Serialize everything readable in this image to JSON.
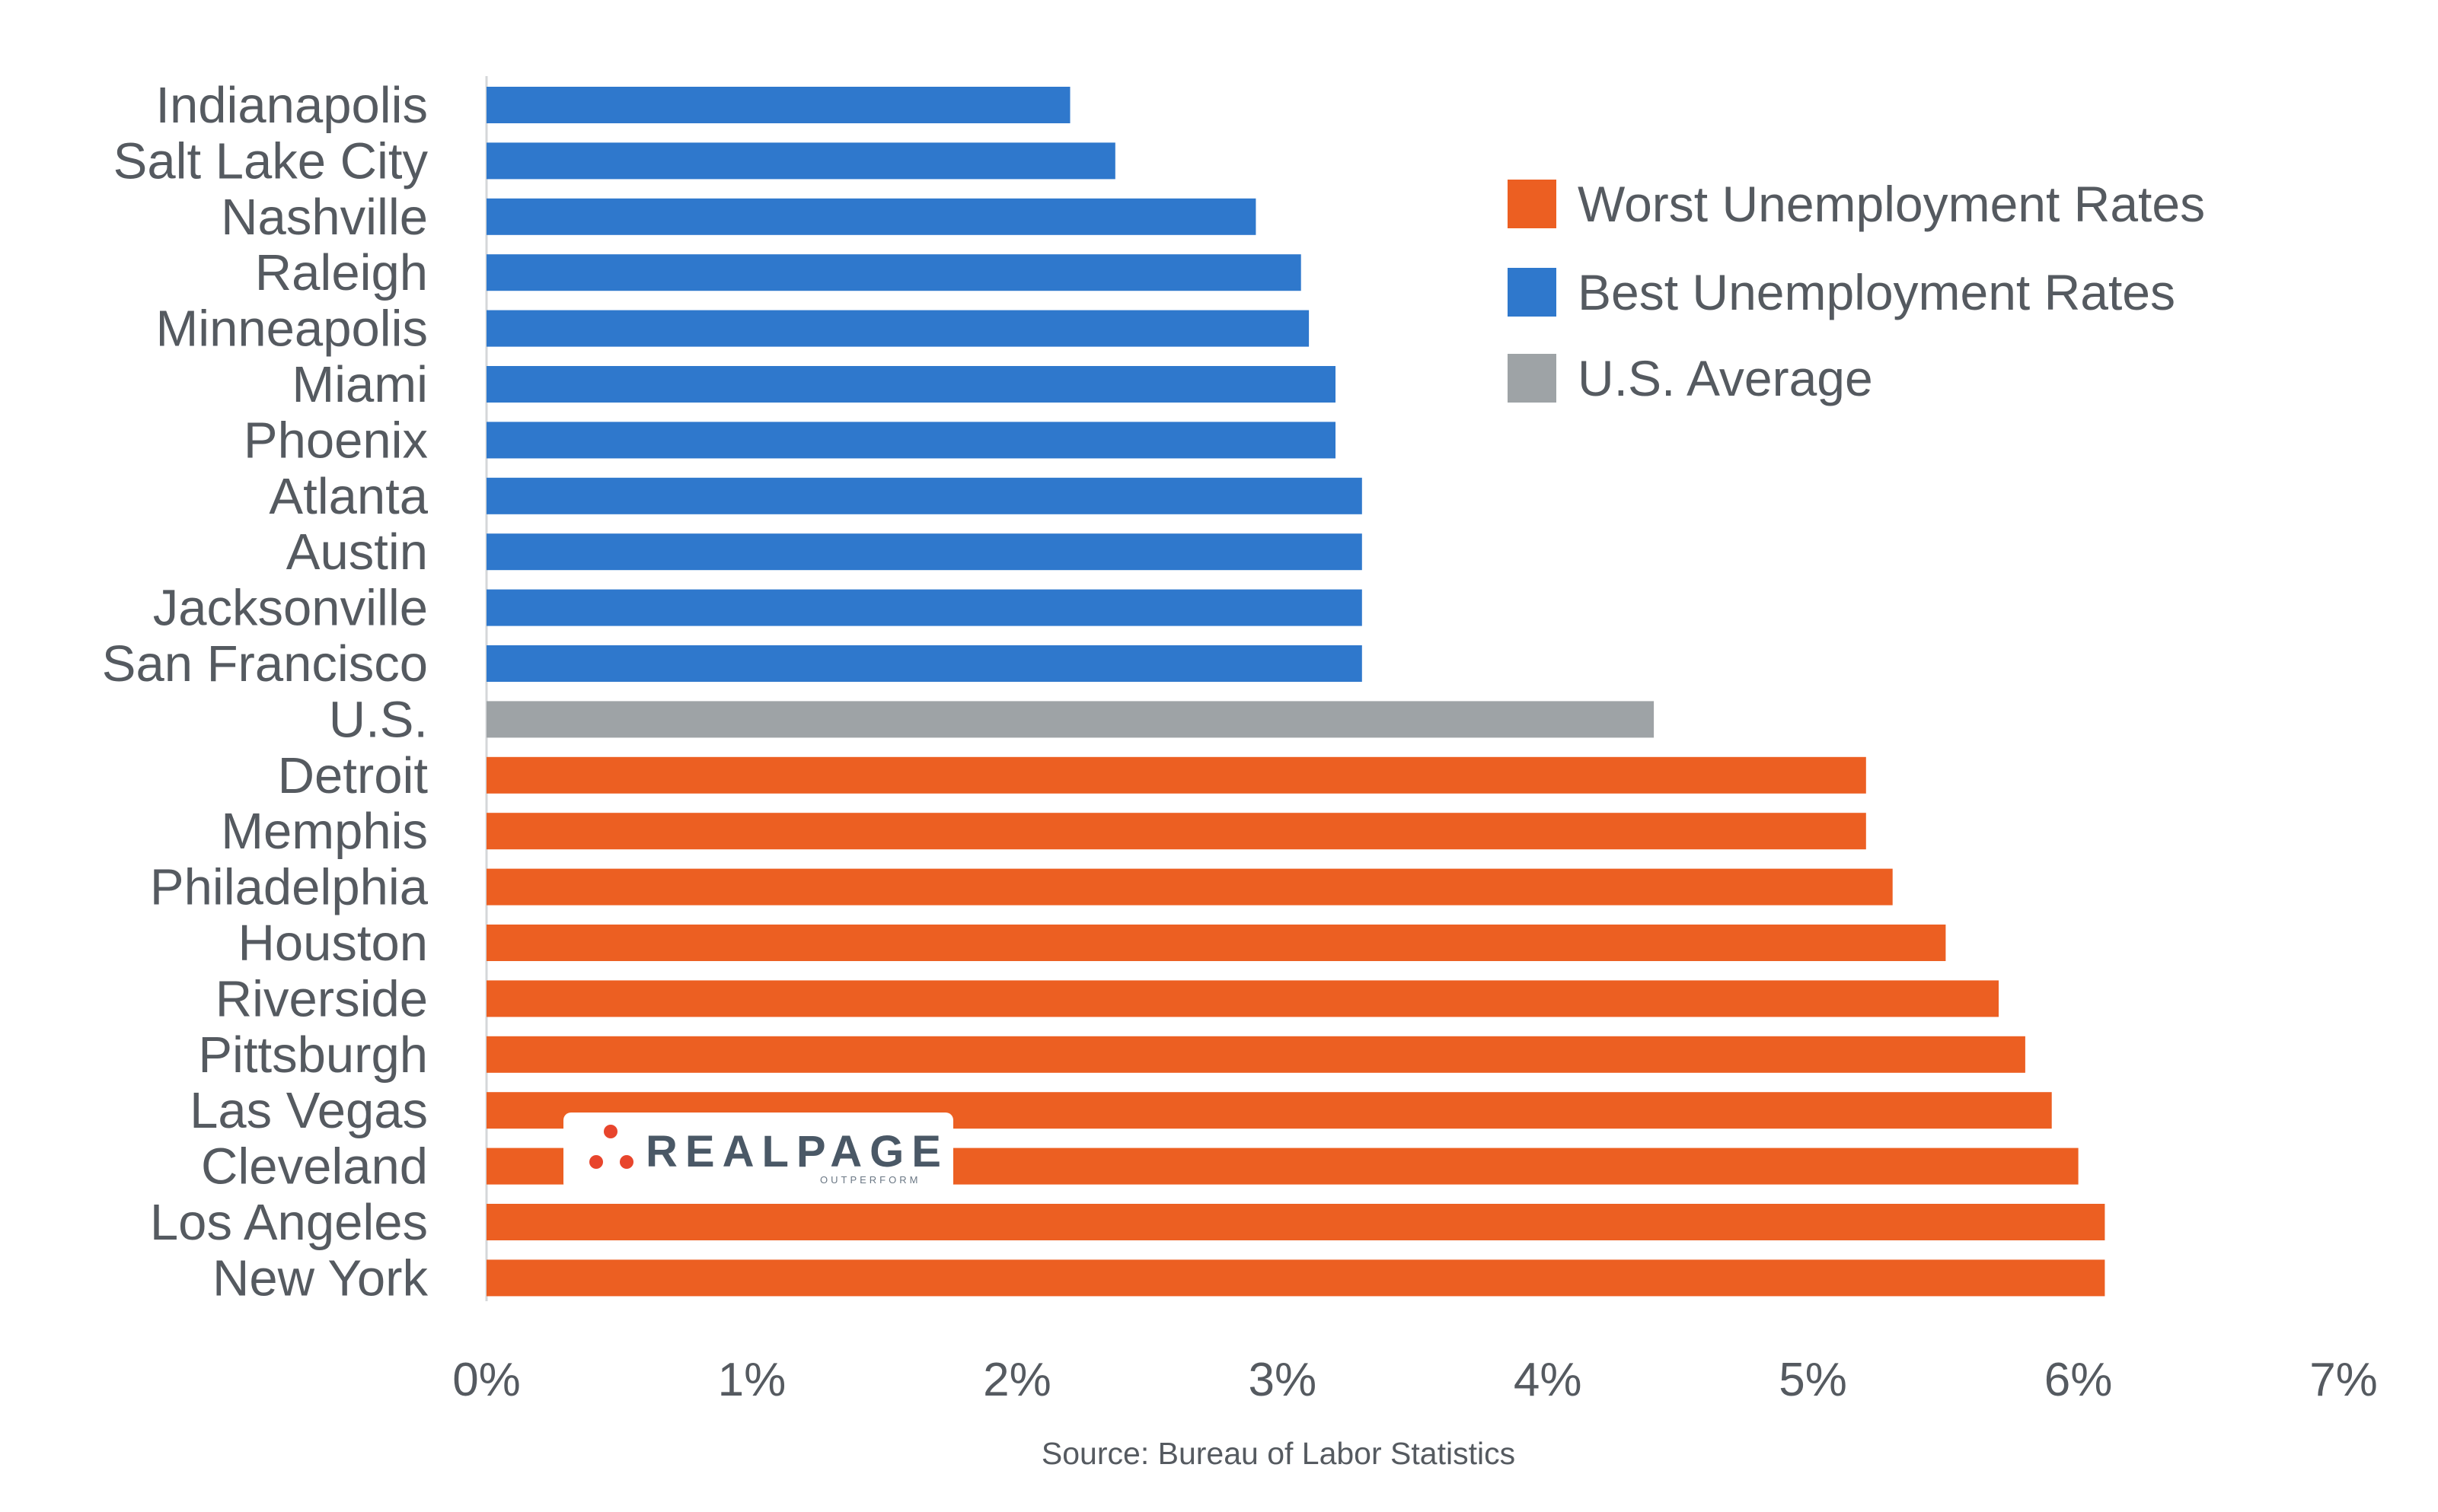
{
  "chart_data": {
    "type": "bar",
    "orientation": "horizontal",
    "categories": [
      "Indianapolis",
      "Salt Lake City",
      "Nashville",
      "Raleigh",
      "Minneapolis",
      "Miami",
      "Phoenix",
      "Atlanta",
      "Austin",
      "Jacksonville",
      "San Francisco",
      "U.S.",
      "Detroit",
      "Memphis",
      "Philadelphia",
      "Houston",
      "Riverside",
      "Pittsburgh",
      "Las Vegas",
      "Cleveland",
      "Los Angeles",
      "New York"
    ],
    "values": [
      2.2,
      2.37,
      2.9,
      3.07,
      3.1,
      3.2,
      3.2,
      3.3,
      3.3,
      3.3,
      3.3,
      4.4,
      5.2,
      5.2,
      5.3,
      5.5,
      5.7,
      5.8,
      5.9,
      6.0,
      6.1,
      6.1
    ],
    "groups": [
      "best",
      "best",
      "best",
      "best",
      "best",
      "best",
      "best",
      "best",
      "best",
      "best",
      "best",
      "average",
      "worst",
      "worst",
      "worst",
      "worst",
      "worst",
      "worst",
      "worst",
      "worst",
      "worst",
      "worst"
    ],
    "xlim": [
      0,
      7
    ],
    "xticks": [
      "0%",
      "1%",
      "2%",
      "3%",
      "4%",
      "5%",
      "6%",
      "7%"
    ],
    "grid": false,
    "legend": {
      "placement": "top-right",
      "entries": [
        {
          "key": "worst",
          "label": "Worst Unemployment Rates",
          "color": "#ec5f22"
        },
        {
          "key": "best",
          "label": "Best Unemployment Rates",
          "color": "#2f78cc"
        },
        {
          "key": "average",
          "label": "U.S. Average",
          "color": "#9ea3a6"
        }
      ]
    },
    "source": "Source: Bureau of Labor Statistics"
  },
  "logo": {
    "wordmark": "REALPAGE",
    "tagline": "OUTPERFORM",
    "accent_color": "#e8452c"
  }
}
